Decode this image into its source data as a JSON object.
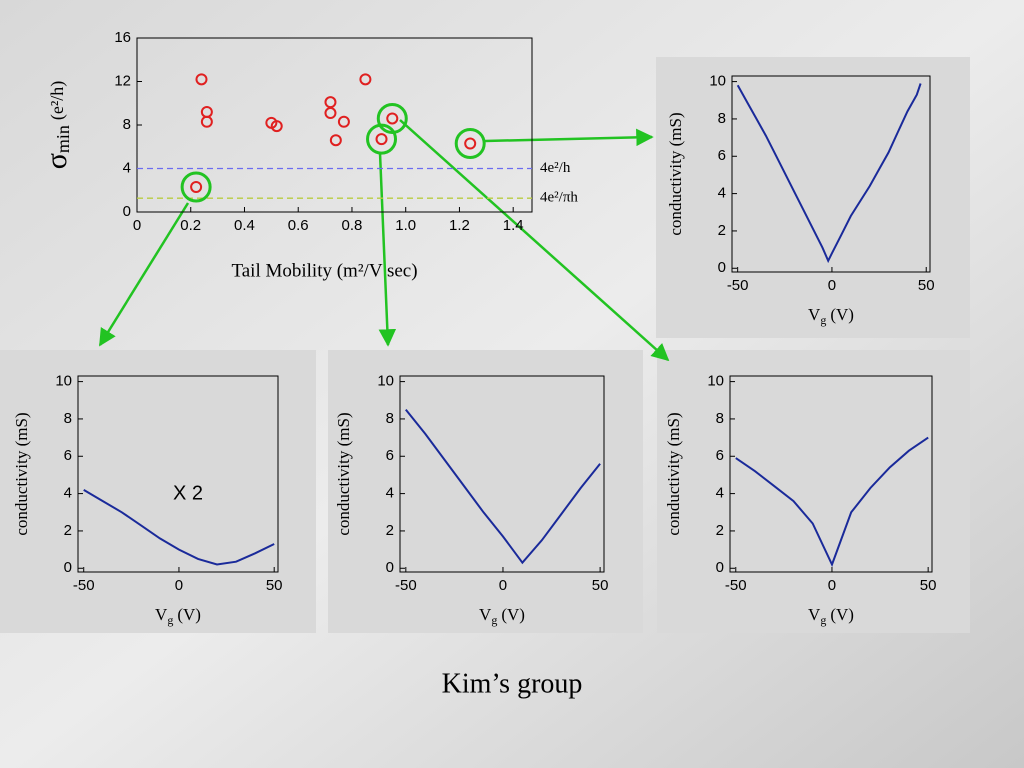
{
  "chart_data": [
    {
      "type": "scatter",
      "xlabel": "Tail Mobility (m²/V sec)",
      "ylabel": {
        "symbol": "σ",
        "sub": "min",
        "unit": "(e²/h)"
      },
      "x": [
        0.24,
        0.26,
        0.26,
        0.5,
        0.52,
        0.72,
        0.72,
        0.77,
        0.74,
        0.85,
        0.91,
        0.95,
        1.24,
        0.22
      ],
      "values": [
        12.2,
        9.2,
        8.3,
        8.2,
        7.9,
        10.1,
        9.1,
        8.3,
        6.6,
        12.2,
        6.7,
        8.6,
        6.3,
        2.3
      ],
      "color": "#e02020",
      "highlighted": [
        13,
        10,
        11,
        12
      ],
      "highlight_color": "#22c322",
      "reference_lines": [
        {
          "value": 4,
          "label": "4e²/h",
          "color": "#6c6cf0"
        },
        {
          "value": 1.27,
          "label": "4e²/πh",
          "color": "#b8cc40"
        }
      ],
      "xlim": [
        0,
        1.47
      ],
      "ylim": [
        0,
        16
      ],
      "xticks": [
        0,
        0.2,
        0.4,
        0.6,
        0.8,
        {
          "value": 1,
          "label": "1.0"
        },
        1.2,
        1.4
      ],
      "yticks": [
        0,
        4,
        8,
        12,
        16
      ]
    },
    {
      "type": "line",
      "xlabel": {
        "main": "V",
        "sub": "g",
        "unit": "(V)"
      },
      "ylabel": "conductivity (mS)",
      "x": [
        -50,
        -45,
        -40,
        -35,
        -30,
        -25,
        -20,
        -15,
        -10,
        -5,
        -2,
        0,
        5,
        10,
        15,
        20,
        25,
        30,
        35,
        40,
        45,
        47
      ],
      "values": [
        9.8,
        8.9,
        8.0,
        7.1,
        6.1,
        5.1,
        4.1,
        3.1,
        2.1,
        1.1,
        0.4,
        0.8,
        1.8,
        2.8,
        3.6,
        4.4,
        5.3,
        6.2,
        7.3,
        8.4,
        9.3,
        9.9
      ],
      "color": "#1a2a9a",
      "xlim": [
        -53,
        52
      ],
      "ylim": [
        -0.2,
        10.3
      ],
      "xticks": [
        -50,
        0,
        50
      ],
      "yticks": [
        0,
        2,
        4,
        6,
        8,
        10
      ]
    },
    {
      "type": "line",
      "xlabel": {
        "main": "V",
        "sub": "g",
        "unit": "(V)"
      },
      "ylabel": "conductivity (mS)",
      "annotation": "X 2",
      "annotation_color": "#1f3fd0",
      "x": [
        -50,
        -40,
        -30,
        -20,
        -10,
        0,
        10,
        20,
        30,
        40,
        50
      ],
      "values": [
        4.2,
        3.6,
        3.0,
        2.3,
        1.6,
        1.0,
        0.5,
        0.2,
        0.35,
        0.8,
        1.3
      ],
      "color": "#1a2a9a",
      "xlim": [
        -53,
        52
      ],
      "ylim": [
        -0.2,
        10.3
      ],
      "xticks": [
        -50,
        0,
        50
      ],
      "yticks": [
        0,
        2,
        4,
        6,
        8,
        10
      ]
    },
    {
      "type": "line",
      "xlabel": {
        "main": "V",
        "sub": "g",
        "unit": "(V)"
      },
      "ylabel": "conductivity (mS)",
      "x": [
        -50,
        -40,
        -30,
        -20,
        -10,
        0,
        10,
        20,
        30,
        40,
        50
      ],
      "values": [
        8.5,
        7.2,
        5.8,
        4.4,
        3.0,
        1.7,
        0.3,
        1.5,
        2.9,
        4.3,
        5.6
      ],
      "color": "#1a2a9a",
      "xlim": [
        -53,
        52
      ],
      "ylim": [
        -0.2,
        10.3
      ],
      "xticks": [
        -50,
        0,
        50
      ],
      "yticks": [
        0,
        2,
        4,
        6,
        8,
        10
      ]
    },
    {
      "type": "line",
      "xlabel": {
        "main": "V",
        "sub": "g",
        "unit": "(V)"
      },
      "ylabel": "conductivity (mS)",
      "x": [
        -50,
        -40,
        -30,
        -20,
        -10,
        0,
        10,
        20,
        30,
        40,
        50
      ],
      "values": [
        5.9,
        5.2,
        4.4,
        3.6,
        2.4,
        0.2,
        3.0,
        4.3,
        5.4,
        6.3,
        7.0
      ],
      "color": "#1a2a9a",
      "xlim": [
        -53,
        52
      ],
      "ylim": [
        -0.2,
        10.3
      ],
      "xticks": [
        -50,
        0,
        50
      ],
      "yticks": [
        0,
        2,
        4,
        6,
        8,
        10
      ]
    }
  ],
  "footer": "Kim’s group"
}
